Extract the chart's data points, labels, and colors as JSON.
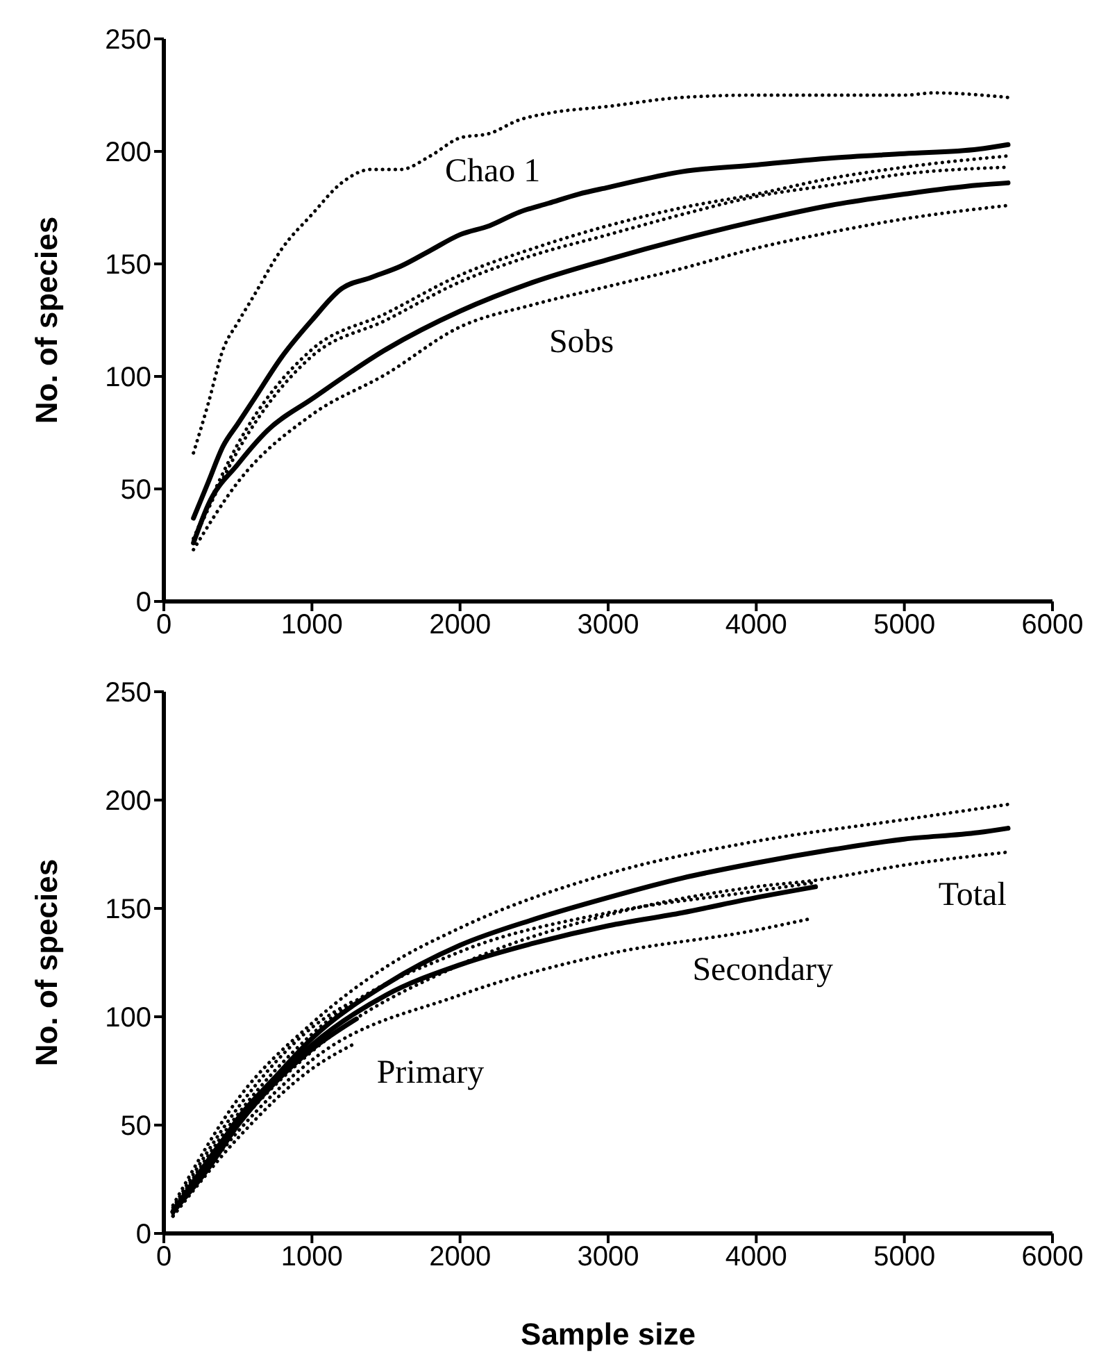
{
  "chart_data": [
    {
      "type": "line",
      "ylabel": "No. of species",
      "xlim": [
        0,
        6000
      ],
      "xticks": [
        0,
        1000,
        2000,
        3000,
        4000,
        5000,
        6000
      ],
      "ylim": [
        0,
        250
      ],
      "yticks": [
        0,
        50,
        100,
        150,
        200,
        250
      ],
      "grid": false,
      "legend": false,
      "marker": "none",
      "annotations": [
        "Chao 1",
        "Sobs"
      ],
      "series": [
        {
          "color": "#000000",
          "line_style": "dotted",
          "x": [
            200,
            300,
            400,
            500,
            600,
            800,
            1000,
            1200,
            1400,
            1600,
            1800,
            2000,
            2200,
            2400,
            2600,
            3000,
            3500,
            4000,
            4500,
            5000,
            5200,
            5700
          ],
          "values": [
            66,
            88,
            112,
            124,
            135,
            157,
            172,
            186,
            192,
            192,
            198,
            206,
            208,
            214,
            217,
            220,
            224,
            225,
            225,
            225,
            226,
            224
          ]
        },
        {
          "color": "#000000",
          "line_style": "solid",
          "x": [
            200,
            300,
            400,
            500,
            600,
            800,
            1000,
            1200,
            1400,
            1600,
            1800,
            2000,
            2200,
            2400,
            2600,
            2800,
            3000,
            3500,
            4000,
            4500,
            5000,
            5500,
            5700
          ],
          "values": [
            37,
            53,
            69,
            79,
            89,
            109,
            125,
            139,
            144,
            149,
            156,
            163,
            167,
            173,
            177,
            181,
            184,
            191,
            194,
            197,
            199,
            201,
            203
          ]
        },
        {
          "color": "#000000",
          "line_style": "dotted",
          "x": [
            200,
            500,
            1000,
            1500,
            2000,
            2500,
            3000,
            3500,
            4000,
            4500,
            5000,
            5700
          ],
          "values": [
            28,
            70,
            112,
            128,
            145,
            157,
            167,
            175,
            181,
            188,
            193,
            198
          ]
        },
        {
          "color": "#000000",
          "line_style": "dotted",
          "x": [
            200,
            500,
            1000,
            1500,
            2000,
            2500,
            3000,
            3500,
            4000,
            4500,
            5000,
            5700
          ],
          "values": [
            27,
            67,
            109,
            125,
            142,
            154,
            163,
            172,
            180,
            185,
            190,
            193
          ]
        },
        {
          "color": "#000000",
          "line_style": "solid",
          "x": [
            200,
            300,
            500,
            700,
            1000,
            1500,
            2000,
            2500,
            3000,
            3500,
            4000,
            4500,
            5000,
            5500,
            5700
          ],
          "values": [
            26,
            43,
            61,
            76,
            90,
            112,
            129,
            142,
            152,
            161,
            169,
            176,
            181,
            185,
            186
          ]
        },
        {
          "color": "#000000",
          "line_style": "dotted",
          "x": [
            200,
            500,
            1000,
            1500,
            2000,
            2500,
            3000,
            3500,
            4000,
            4500,
            5000,
            5700
          ],
          "values": [
            23,
            53,
            83,
            101,
            122,
            132,
            140,
            148,
            157,
            164,
            170,
            176
          ]
        }
      ]
    },
    {
      "type": "line",
      "xlabel": "Sample size",
      "ylabel": "No. of species",
      "xlim": [
        0,
        6000
      ],
      "xticks": [
        0,
        1000,
        2000,
        3000,
        4000,
        5000,
        6000
      ],
      "ylim": [
        0,
        250
      ],
      "yticks": [
        0,
        50,
        100,
        150,
        200,
        250
      ],
      "grid": false,
      "legend": false,
      "marker": "none",
      "annotations": [
        "Total",
        "Secondary",
        "Primary"
      ],
      "series": [
        {
          "color": "#000000",
          "line_style": "dotted",
          "x": [
            62,
            500,
            1000,
            1500,
            2000,
            3000,
            4000,
            5000,
            5700
          ],
          "values": [
            13,
            62,
            97,
            123,
            141,
            166,
            181,
            191,
            198
          ]
        },
        {
          "color": "#000000",
          "line_style": "solid",
          "x": [
            62,
            200,
            300,
            500,
            750,
            1000,
            1500,
            2000,
            2500,
            3000,
            3500,
            4000,
            4500,
            5000,
            5500,
            5700
          ],
          "values": [
            10,
            22,
            32,
            53,
            72,
            90,
            115,
            133,
            145,
            155,
            164,
            171,
            177,
            182,
            185,
            187
          ]
        },
        {
          "color": "#000000",
          "line_style": "dotted",
          "x": [
            62,
            500,
            1000,
            2000,
            3000,
            4000,
            4400,
            5000,
            5700
          ],
          "values": [
            9,
            50,
            84,
            124,
            147,
            160,
            163,
            170,
            176
          ]
        },
        {
          "color": "#000000",
          "line_style": "dotted",
          "x": [
            62,
            500,
            1000,
            2000,
            3000,
            4000,
            4400
          ],
          "values": [
            11,
            55,
            92,
            130,
            148,
            158,
            162
          ]
        },
        {
          "color": "#000000",
          "line_style": "solid",
          "x": [
            62,
            500,
            1000,
            1500,
            2000,
            2500,
            3000,
            3500,
            4000,
            4400
          ],
          "values": [
            10,
            52,
            87,
            110,
            124,
            134,
            142,
            148,
            155,
            160
          ]
        },
        {
          "color": "#000000",
          "line_style": "dotted",
          "x": [
            62,
            500,
            1000,
            2000,
            3000,
            4000,
            4350
          ],
          "values": [
            8,
            47,
            80,
            110,
            129,
            140,
            145
          ]
        },
        {
          "color": "#000000",
          "line_style": "dotted",
          "x": [
            62,
            500,
            1000,
            1300
          ],
          "values": [
            12,
            58,
            95,
            108
          ]
        },
        {
          "color": "#000000",
          "line_style": "solid",
          "x": [
            62,
            300,
            500,
            800,
            1000,
            1300
          ],
          "values": [
            10,
            30,
            50,
            73,
            85,
            99
          ]
        },
        {
          "color": "#000000",
          "line_style": "dotted",
          "x": [
            62,
            500,
            1000,
            1300
          ],
          "values": [
            8,
            44,
            76,
            88
          ]
        }
      ]
    }
  ]
}
